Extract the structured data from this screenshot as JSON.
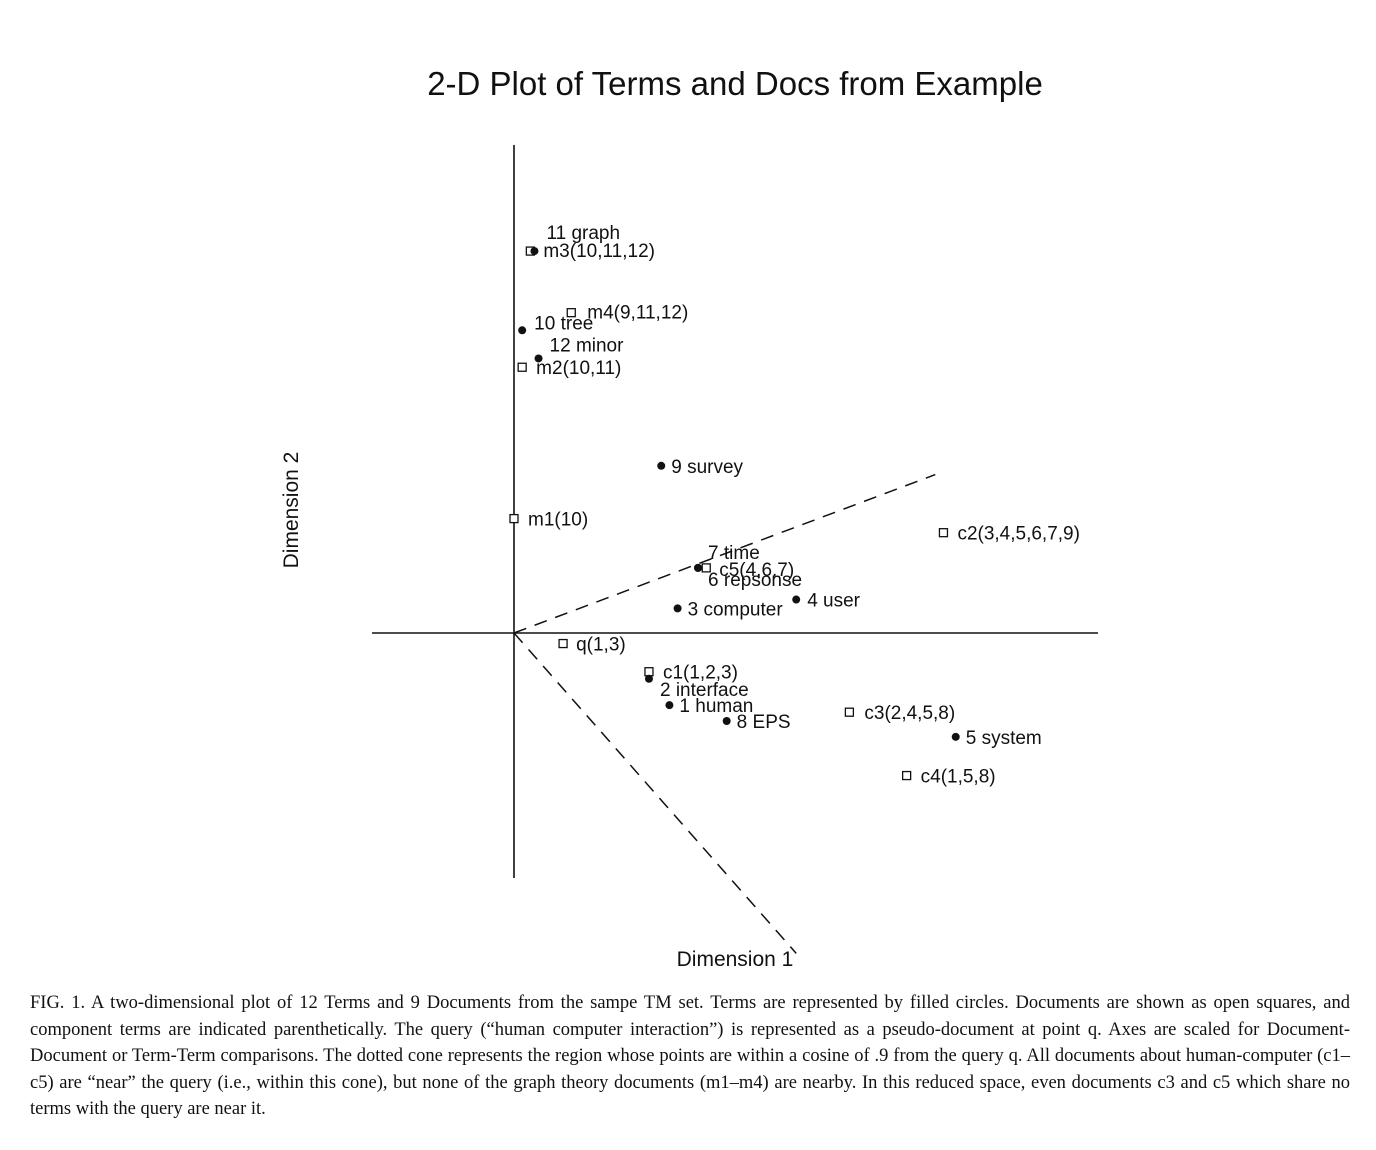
{
  "chart_data": {
    "type": "scatter",
    "title": "2-D Plot of Terms and Docs from Example",
    "xlabel": "Dimension 1",
    "ylabel": "Dimension 2",
    "terms": [
      {
        "label": "11 graph",
        "x": 0.05,
        "y": 2.17
      },
      {
        "label": "10 tree",
        "x": 0.02,
        "y": 1.72
      },
      {
        "label": "12 minor",
        "x": 0.06,
        "y": 1.56
      },
      {
        "label": "9 survey",
        "x": 0.36,
        "y": 0.95
      },
      {
        "label": "7 time",
        "x": 0.45,
        "y": 0.37
      },
      {
        "label": "6 repsonse",
        "x": 0.45,
        "y": 0.37
      },
      {
        "label": "4 user",
        "x": 0.69,
        "y": 0.19
      },
      {
        "label": "3 computer",
        "x": 0.4,
        "y": 0.14
      },
      {
        "label": "2 interface",
        "x": 0.33,
        "y": -0.26
      },
      {
        "label": "1 human",
        "x": 0.38,
        "y": -0.41
      },
      {
        "label": "8 EPS",
        "x": 0.52,
        "y": -0.5
      },
      {
        "label": "5 system",
        "x": 1.08,
        "y": -0.59
      }
    ],
    "documents": [
      {
        "label": "m3(10,11,12)",
        "x": 0.04,
        "y": 2.17
      },
      {
        "label": "m4(9,11,12)",
        "x": 0.14,
        "y": 1.82
      },
      {
        "label": "m2(10,11)",
        "x": 0.02,
        "y": 1.51
      },
      {
        "label": "m1(10)",
        "x": 0.0,
        "y": 0.65
      },
      {
        "label": "c2(3,4,5,6,7,9)",
        "x": 1.05,
        "y": 0.57
      },
      {
        "label": "c5(4,6,7)",
        "x": 0.47,
        "y": 0.37
      },
      {
        "label": "q(1,3)",
        "x": 0.12,
        "y": -0.06
      },
      {
        "label": "c1(1,2,3)",
        "x": 0.33,
        "y": -0.22
      },
      {
        "label": "c3(2,4,5,8)",
        "x": 0.82,
        "y": -0.45
      },
      {
        "label": "c4(1,5,8)",
        "x": 0.96,
        "y": -0.81
      }
    ],
    "cone": {
      "upper_end": {
        "x": 1.03,
        "y": 0.9
      },
      "lower_end": {
        "x": 0.69,
        "y": -1.82
      }
    },
    "grid": false,
    "legend": "none"
  },
  "caption": "FIG. 1.   A two-dimensional plot of 12 Terms and 9 Documents from the sampe TM set. Terms are represented by filled circles. Documents are shown as open squares, and component terms are indicated parenthetically. The query (“human computer interaction”) is represented as a pseudo-document at point q. Axes are scaled for Document-Document or Term-Term comparisons. The dotted cone represents the region whose points are within a cosine of .9 from the query q. All documents about human-computer (c1–c5) are “near” the query (i.e., within this cone), but none of the graph theory documents (m1–m4) are nearby. In this reduced space, even documents c3 and c5 which share no terms with the query are near it."
}
